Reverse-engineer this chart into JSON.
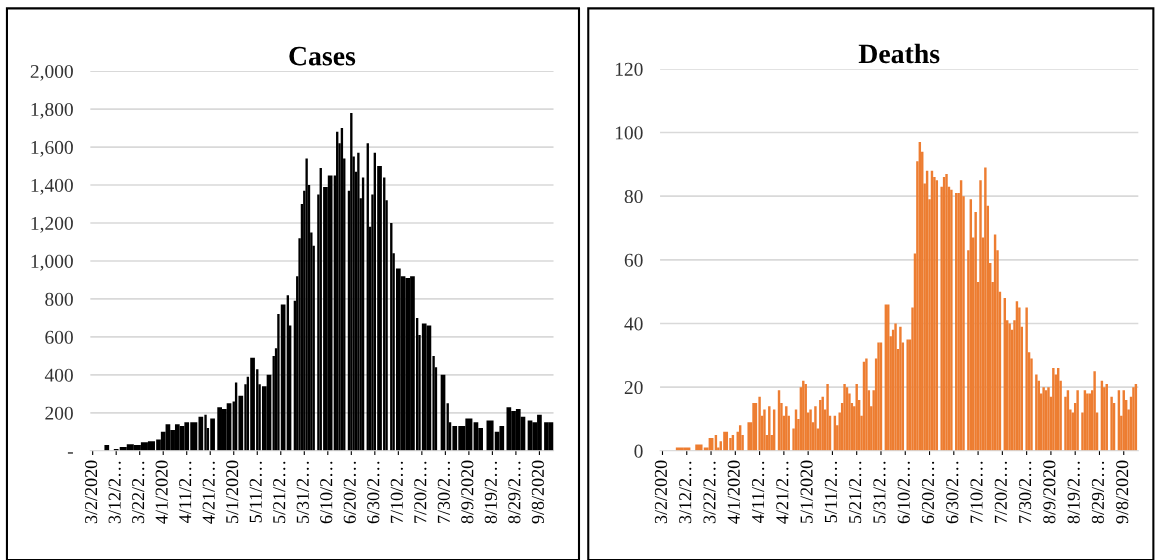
{
  "chart_data": [
    {
      "type": "bar",
      "title": "Cases",
      "color": "#000000",
      "grid": "y",
      "x": [
        "2020-03-02",
        "2020-03-05",
        "2020-03-08",
        "2020-03-10",
        "2020-03-12",
        "2020-03-15",
        "2020-03-18",
        "2020-03-21",
        "2020-03-24",
        "2020-03-27",
        "2020-03-30",
        "2020-04-01",
        "2020-04-03",
        "2020-04-05",
        "2020-04-07",
        "2020-04-09",
        "2020-04-11",
        "2020-04-14",
        "2020-04-17",
        "2020-04-19",
        "2020-04-20",
        "2020-04-22",
        "2020-04-25",
        "2020-04-27",
        "2020-04-29",
        "2020-05-01",
        "2020-05-02",
        "2020-05-04",
        "2020-05-06",
        "2020-05-07",
        "2020-05-09",
        "2020-05-11",
        "2020-05-12",
        "2020-05-14",
        "2020-05-16",
        "2020-05-18",
        "2020-05-19",
        "2020-05-20",
        "2020-05-22",
        "2020-05-24",
        "2020-05-25",
        "2020-05-27",
        "2020-05-28",
        "2020-05-29",
        "2020-05-30",
        "2020-05-31",
        "2020-06-01",
        "2020-06-02",
        "2020-06-03",
        "2020-06-04",
        "2020-06-06",
        "2020-06-07",
        "2020-06-09",
        "2020-06-11",
        "2020-06-13",
        "2020-06-14",
        "2020-06-15",
        "2020-06-16",
        "2020-06-17",
        "2020-06-19",
        "2020-06-20",
        "2020-06-21",
        "2020-06-22",
        "2020-06-23",
        "2020-06-24",
        "2020-06-25",
        "2020-06-27",
        "2020-06-28",
        "2020-06-29",
        "2020-06-30",
        "2020-07-02",
        "2020-07-04",
        "2020-07-05",
        "2020-07-07",
        "2020-07-08",
        "2020-07-10",
        "2020-07-12",
        "2020-07-14",
        "2020-07-16",
        "2020-07-18",
        "2020-07-19",
        "2020-07-21",
        "2020-07-23",
        "2020-07-25",
        "2020-07-26",
        "2020-07-29",
        "2020-07-31",
        "2020-08-01",
        "2020-08-03",
        "2020-08-06",
        "2020-08-09",
        "2020-08-12",
        "2020-08-14",
        "2020-08-18",
        "2020-08-21",
        "2020-08-23",
        "2020-08-26",
        "2020-08-28",
        "2020-08-30",
        "2020-09-01",
        "2020-09-04",
        "2020-09-06",
        "2020-09-08",
        "2020-09-11",
        "2020-09-13"
      ],
      "values": [
        0,
        null,
        30,
        null,
        10,
        20,
        35,
        30,
        45,
        50,
        60,
        100,
        140,
        110,
        140,
        130,
        150,
        150,
        180,
        190,
        120,
        170,
        230,
        220,
        250,
        260,
        360,
        290,
        350,
        390,
        490,
        430,
        350,
        340,
        400,
        500,
        540,
        720,
        770,
        820,
        660,
        790,
        920,
        1120,
        1300,
        1370,
        1540,
        1400,
        1150,
        1080,
        1350,
        1490,
        1390,
        1450,
        1450,
        1680,
        1620,
        1700,
        1540,
        1370,
        1780,
        1550,
        1470,
        1570,
        1330,
        1440,
        1620,
        1180,
        1350,
        1570,
        1500,
        1440,
        1320,
        1200,
        1040,
        960,
        920,
        910,
        920,
        700,
        610,
        670,
        660,
        500,
        440,
        400,
        250,
        150,
        130,
        130,
        170,
        150,
        120,
        160,
        100,
        130,
        230,
        210,
        220,
        180,
        160,
        150,
        190,
        150,
        150
      ],
      "xlim": [
        "2020-03-01",
        "2020-09-14"
      ],
      "xticks": [
        {
          "value": "2020-03-02",
          "label": "3/2/2020"
        },
        {
          "value": "2020-03-12",
          "label": "3/12/2…"
        },
        {
          "value": "2020-03-22",
          "label": "3/22/2…"
        },
        {
          "value": "2020-04-01",
          "label": "4/1/2020"
        },
        {
          "value": "2020-04-11",
          "label": "4/11/2…"
        },
        {
          "value": "2020-04-21",
          "label": "4/21/2…"
        },
        {
          "value": "2020-05-01",
          "label": "5/1/2020"
        },
        {
          "value": "2020-05-11",
          "label": "5/11/2…"
        },
        {
          "value": "2020-05-21",
          "label": "5/21/2…"
        },
        {
          "value": "2020-05-31",
          "label": "5/31/2…"
        },
        {
          "value": "2020-06-10",
          "label": "6/10/2…"
        },
        {
          "value": "2020-06-20",
          "label": "6/20/2…"
        },
        {
          "value": "2020-06-30",
          "label": "6/30/2…"
        },
        {
          "value": "2020-07-10",
          "label": "7/10/2…"
        },
        {
          "value": "2020-07-20",
          "label": "7/20/2…"
        },
        {
          "value": "2020-07-30",
          "label": "7/30/2…"
        },
        {
          "value": "2020-08-09",
          "label": "8/9/2020"
        },
        {
          "value": "2020-08-19",
          "label": "8/19/2…"
        },
        {
          "value": "2020-08-29",
          "label": "8/29/2…"
        },
        {
          "value": "2020-09-08",
          "label": "9/8/2020"
        }
      ],
      "ylim": [
        0,
        2000
      ],
      "yticks": [
        {
          "value": 0,
          "label": "-"
        },
        200,
        400,
        600,
        800,
        {
          "value": 1000,
          "label": "1,000"
        },
        {
          "value": 1200,
          "label": "1,200"
        },
        {
          "value": 1400,
          "label": "1,400"
        },
        {
          "value": 1600,
          "label": "1,600"
        },
        {
          "value": 1800,
          "label": "1,800"
        },
        {
          "value": 2000,
          "label": "2,000"
        }
      ]
    },
    {
      "type": "bar",
      "title": "Deaths",
      "color": "#ed7d31",
      "grid": "y",
      "x": [
        "2020-03-09",
        "2020-03-12",
        "2020-03-17",
        "2020-03-20",
        "2020-03-22",
        "2020-03-24",
        "2020-03-25",
        "2020-03-26",
        "2020-03-28",
        "2020-03-30",
        "2020-03-31",
        "2020-04-02",
        "2020-04-03",
        "2020-04-04",
        "2020-04-07",
        "2020-04-09",
        "2020-04-11",
        "2020-04-12",
        "2020-04-13",
        "2020-04-14",
        "2020-04-15",
        "2020-04-16",
        "2020-04-17",
        "2020-04-19",
        "2020-04-20",
        "2020-04-21",
        "2020-04-22",
        "2020-04-23",
        "2020-04-25",
        "2020-04-26",
        "2020-04-27",
        "2020-04-28",
        "2020-04-29",
        "2020-04-30",
        "2020-05-01",
        "2020-05-02",
        "2020-05-03",
        "2020-05-04",
        "2020-05-05",
        "2020-05-06",
        "2020-05-07",
        "2020-05-08",
        "2020-05-09",
        "2020-05-10",
        "2020-05-12",
        "2020-05-13",
        "2020-05-14",
        "2020-05-15",
        "2020-05-16",
        "2020-05-17",
        "2020-05-18",
        "2020-05-19",
        "2020-05-20",
        "2020-05-21",
        "2020-05-22",
        "2020-05-23",
        "2020-05-24",
        "2020-05-25",
        "2020-05-26",
        "2020-05-27",
        "2020-05-28",
        "2020-05-29",
        "2020-05-30",
        "2020-05-31",
        "2020-06-02",
        "2020-06-03",
        "2020-06-04",
        "2020-06-05",
        "2020-06-06",
        "2020-06-07",
        "2020-06-08",
        "2020-06-09",
        "2020-06-11",
        "2020-06-12",
        "2020-06-13",
        "2020-06-14",
        "2020-06-15",
        "2020-06-16",
        "2020-06-17",
        "2020-06-18",
        "2020-06-19",
        "2020-06-20",
        "2020-06-21",
        "2020-06-22",
        "2020-06-23",
        "2020-06-25",
        "2020-06-26",
        "2020-06-27",
        "2020-06-28",
        "2020-06-29",
        "2020-07-01",
        "2020-07-02",
        "2020-07-03",
        "2020-07-04",
        "2020-07-06",
        "2020-07-07",
        "2020-07-08",
        "2020-07-09",
        "2020-07-10",
        "2020-07-11",
        "2020-07-12",
        "2020-07-13",
        "2020-07-14",
        "2020-07-15",
        "2020-07-16",
        "2020-07-17",
        "2020-07-18",
        "2020-07-19",
        "2020-07-21",
        "2020-07-22",
        "2020-07-23",
        "2020-07-24",
        "2020-07-25",
        "2020-07-26",
        "2020-07-27",
        "2020-07-28",
        "2020-07-30",
        "2020-07-31",
        "2020-08-01",
        "2020-08-03",
        "2020-08-04",
        "2020-08-05",
        "2020-08-06",
        "2020-08-07",
        "2020-08-08",
        "2020-08-09",
        "2020-08-10",
        "2020-08-11",
        "2020-08-12",
        "2020-08-13",
        "2020-08-15",
        "2020-08-16",
        "2020-08-17",
        "2020-08-18",
        "2020-08-19",
        "2020-08-20",
        "2020-08-22",
        "2020-08-23",
        "2020-08-24",
        "2020-08-25",
        "2020-08-26",
        "2020-08-27",
        "2020-08-28",
        "2020-08-30",
        "2020-08-31",
        "2020-09-01",
        "2020-09-03",
        "2020-09-04",
        "2020-09-06",
        "2020-09-07",
        "2020-09-08",
        "2020-09-09",
        "2020-09-10",
        "2020-09-11",
        "2020-09-12",
        "2020-09-13"
      ],
      "values": [
        1,
        1,
        2,
        1,
        4,
        5,
        1,
        3,
        6,
        4,
        5,
        6,
        8,
        5,
        9,
        15,
        17,
        11,
        13,
        5,
        14,
        5,
        13,
        19,
        15,
        11,
        14,
        11,
        7,
        13,
        10,
        20,
        22,
        21,
        12,
        13,
        9,
        14,
        7,
        16,
        17,
        13,
        21,
        11,
        11,
        8,
        12,
        15,
        21,
        20,
        18,
        15,
        14,
        21,
        16,
        11,
        28,
        29,
        19,
        14,
        19,
        29,
        34,
        34,
        46,
        46,
        36,
        38,
        40,
        32,
        39,
        34,
        35,
        35,
        45,
        62,
        91,
        97,
        94,
        84,
        88,
        79,
        88,
        86,
        85,
        83,
        86,
        87,
        83,
        82,
        81,
        81,
        85,
        80,
        63,
        79,
        67,
        75,
        53,
        85,
        67,
        89,
        77,
        59,
        53,
        68,
        63,
        50,
        48,
        41,
        40,
        38,
        41,
        47,
        45,
        39,
        45,
        31,
        29,
        24,
        22,
        18,
        20,
        19,
        20,
        17,
        26,
        24,
        26,
        22,
        17,
        19,
        13,
        12,
        15,
        19,
        12,
        19,
        18,
        18,
        19,
        25,
        12,
        22,
        20,
        21,
        17,
        15,
        19,
        11,
        19,
        16,
        13,
        17,
        20,
        21
      ],
      "xlim": [
        "2020-03-01",
        "2020-09-14"
      ],
      "xticks": [
        {
          "value": "2020-03-02",
          "label": "3/2/2020"
        },
        {
          "value": "2020-03-12",
          "label": "3/12/2…"
        },
        {
          "value": "2020-03-22",
          "label": "3/22/2…"
        },
        {
          "value": "2020-04-01",
          "label": "4/1/2020"
        },
        {
          "value": "2020-04-11",
          "label": "4/11/2…"
        },
        {
          "value": "2020-04-21",
          "label": "4/21/2…"
        },
        {
          "value": "2020-05-01",
          "label": "5/1/2020"
        },
        {
          "value": "2020-05-11",
          "label": "5/11/2…"
        },
        {
          "value": "2020-05-21",
          "label": "5/21/2…"
        },
        {
          "value": "2020-05-31",
          "label": "5/31/2…"
        },
        {
          "value": "2020-06-10",
          "label": "6/10/2…"
        },
        {
          "value": "2020-06-20",
          "label": "6/20/2…"
        },
        {
          "value": "2020-06-30",
          "label": "6/30/2…"
        },
        {
          "value": "2020-07-10",
          "label": "7/10/2…"
        },
        {
          "value": "2020-07-20",
          "label": "7/20/2…"
        },
        {
          "value": "2020-07-30",
          "label": "7/30/2…"
        },
        {
          "value": "2020-08-09",
          "label": "8/9/2020"
        },
        {
          "value": "2020-08-19",
          "label": "8/19/2…"
        },
        {
          "value": "2020-08-29",
          "label": "8/29/2…"
        },
        {
          "value": "2020-09-08",
          "label": "9/8/2020"
        }
      ],
      "ylim": [
        0,
        120
      ],
      "yticks": [
        0,
        20,
        40,
        60,
        80,
        100,
        120
      ]
    }
  ]
}
